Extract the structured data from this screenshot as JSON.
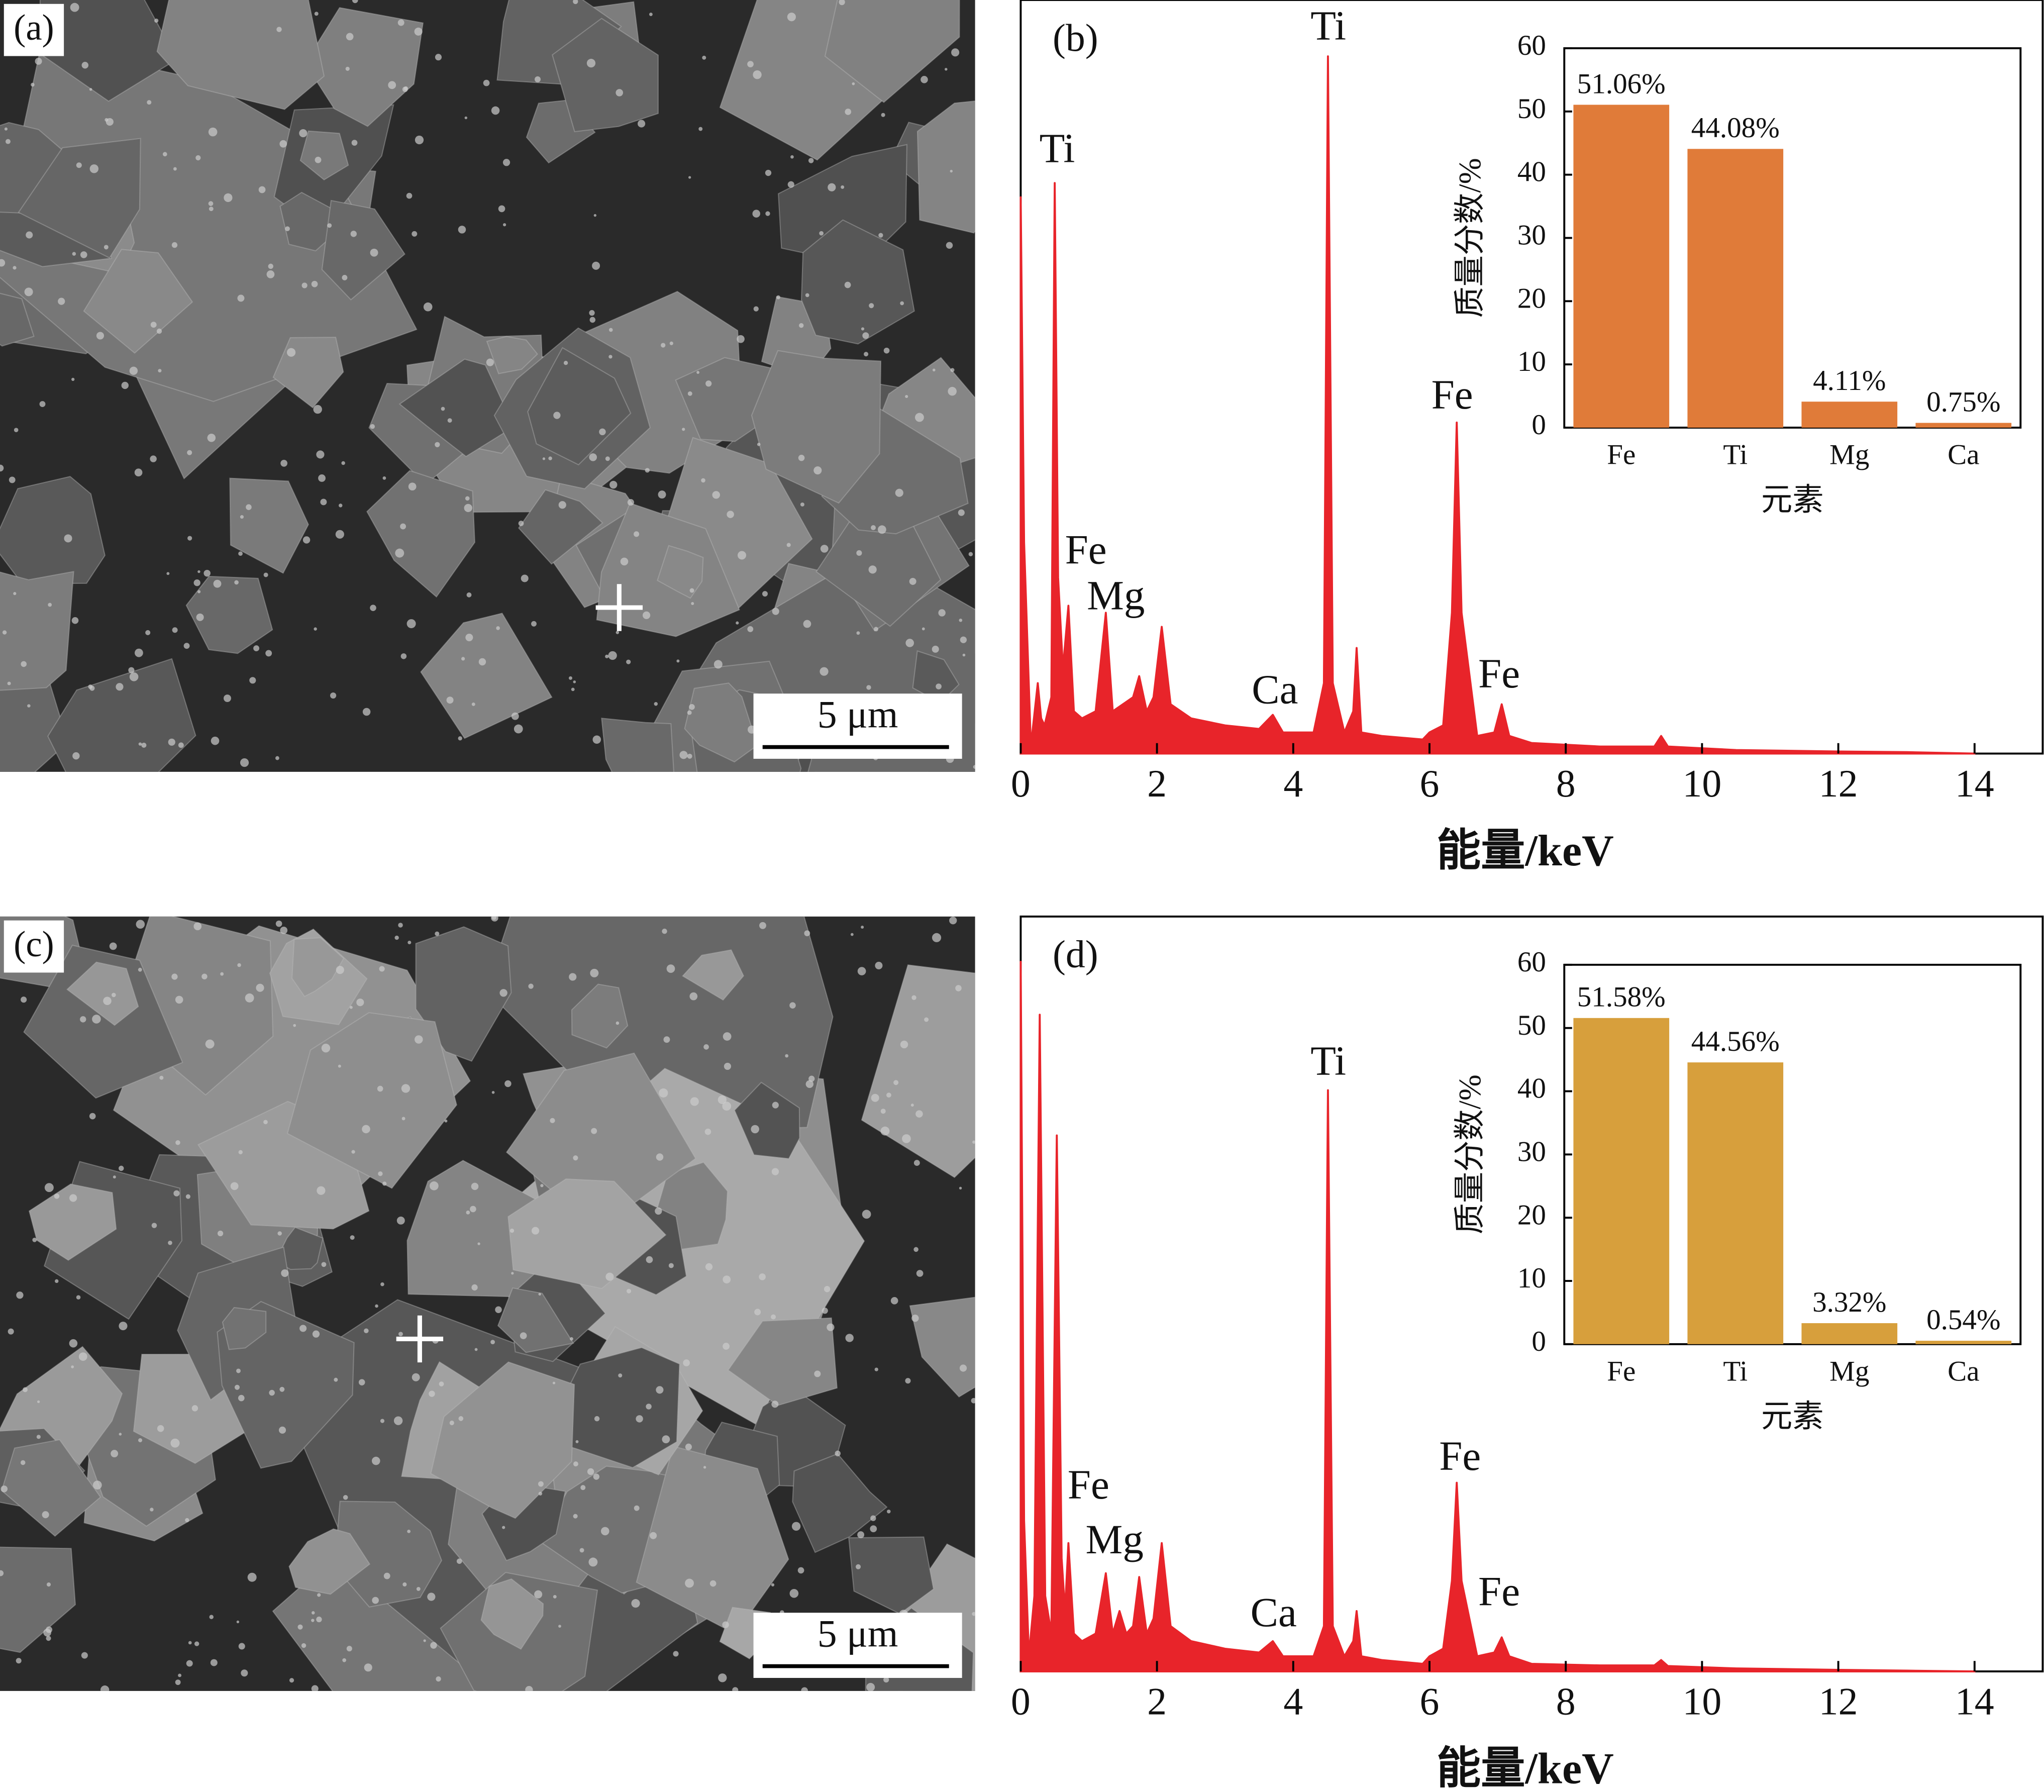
{
  "panels": [
    {
      "label": "(a)",
      "scale_bar": "5 μm"
    },
    {
      "label": "(c)",
      "scale_bar": "5 μm"
    }
  ],
  "chart_data": [
    {
      "type": "line",
      "label": "(b)",
      "xlabel": "能量/keV",
      "color": "#e8242a",
      "xlim": [
        0,
        15
      ],
      "xticks": [
        0,
        2,
        4,
        6,
        8,
        10,
        12,
        14
      ],
      "ylim": [
        0,
        107
      ],
      "x": [
        0,
        0.05,
        0.15,
        0.25,
        0.3,
        0.35,
        0.45,
        0.5,
        0.55,
        0.62,
        0.7,
        0.78,
        0.9,
        1.1,
        1.25,
        1.35,
        1.5,
        1.65,
        1.74,
        1.85,
        1.95,
        2.07,
        2.2,
        2.5,
        3.0,
        3.5,
        3.7,
        3.85,
        4.3,
        4.45,
        4.51,
        4.58,
        4.75,
        4.88,
        4.93,
        5.0,
        5.3,
        5.9,
        6.0,
        6.2,
        6.33,
        6.4,
        6.47,
        6.7,
        6.95,
        7.06,
        7.17,
        7.5,
        8.5,
        9.3,
        9.4,
        9.5,
        10.5,
        12,
        13,
        14
      ],
      "values": [
        79,
        30,
        1,
        10,
        5,
        4,
        8,
        81,
        25,
        12,
        21,
        6,
        5,
        6,
        20,
        6,
        7,
        8,
        11,
        6,
        8,
        18,
        7,
        5,
        4,
        3.5,
        5.5,
        3,
        3,
        10,
        99,
        10,
        3,
        6,
        15,
        3,
        2.5,
        2,
        3,
        4,
        20,
        47,
        20,
        2.5,
        3,
        7,
        2.5,
        1.5,
        1,
        1,
        2.5,
        1,
        0.5,
        0.3,
        0.2,
        0
      ],
      "annotations": [
        "Ti",
        "Fe",
        "Mg",
        "Ca",
        "Ti",
        "Fe",
        "Fe"
      ]
    },
    {
      "type": "bar",
      "xlabel": "元素",
      "ylabel": "质量分数/%",
      "color": "#e07b39",
      "categories": [
        "Fe",
        "Ti",
        "Mg",
        "Ca"
      ],
      "values": [
        51.06,
        44.08,
        4.11,
        0.75
      ],
      "value_labels": [
        "51.06%",
        "44.08%",
        "4.11%",
        "0.75%"
      ],
      "ylim": [
        0,
        60
      ],
      "yticks": [
        0,
        10,
        20,
        30,
        40,
        50,
        60
      ]
    },
    {
      "type": "line",
      "label": "(d)",
      "xlabel": "能量/keV",
      "color": "#e8242a",
      "xlim": [
        0,
        15
      ],
      "xticks": [
        0,
        2,
        4,
        6,
        8,
        10,
        12,
        14
      ],
      "ylim": [
        0,
        100
      ],
      "x": [
        0,
        0.05,
        0.12,
        0.2,
        0.28,
        0.36,
        0.45,
        0.53,
        0.6,
        0.65,
        0.7,
        0.78,
        0.9,
        1.1,
        1.25,
        1.35,
        1.45,
        1.55,
        1.65,
        1.74,
        1.85,
        1.95,
        2.07,
        2.2,
        2.5,
        3.0,
        3.5,
        3.7,
        3.85,
        4.3,
        4.45,
        4.51,
        4.58,
        4.75,
        4.88,
        4.93,
        5.0,
        5.3,
        5.9,
        6.0,
        6.2,
        6.33,
        6.4,
        6.47,
        6.7,
        6.95,
        7.06,
        7.17,
        7.5,
        8.5,
        9.3,
        9.4,
        9.5,
        10.5,
        12,
        13,
        14
      ],
      "values": [
        94,
        20,
        2,
        10,
        87,
        10,
        5,
        71,
        15,
        8,
        17,
        5,
        4,
        5,
        13,
        5,
        8,
        5,
        6,
        12.5,
        5,
        7,
        17,
        6,
        4,
        3,
        2.5,
        4,
        2,
        2,
        6,
        77,
        6,
        2,
        4,
        8,
        2,
        1.5,
        1,
        2,
        3,
        12,
        25,
        12,
        2,
        2.5,
        4.5,
        2,
        1,
        0.8,
        0.8,
        1.5,
        0.7,
        0.4,
        0.2,
        0.1,
        0
      ],
      "annotations": [
        "Fe",
        "Mg",
        "Ti",
        "Ca",
        "Fe",
        "Fe"
      ]
    },
    {
      "type": "bar",
      "xlabel": "元素",
      "ylabel": "质量分数/%",
      "color": "#d79f3c",
      "categories": [
        "Fe",
        "Ti",
        "Mg",
        "Ca"
      ],
      "values": [
        51.58,
        44.56,
        3.32,
        0.54
      ],
      "value_labels": [
        "51.58%",
        "44.56%",
        "3.32%",
        "0.54%"
      ],
      "ylim": [
        0,
        60
      ],
      "yticks": [
        0,
        10,
        20,
        30,
        40,
        50,
        60
      ]
    }
  ]
}
